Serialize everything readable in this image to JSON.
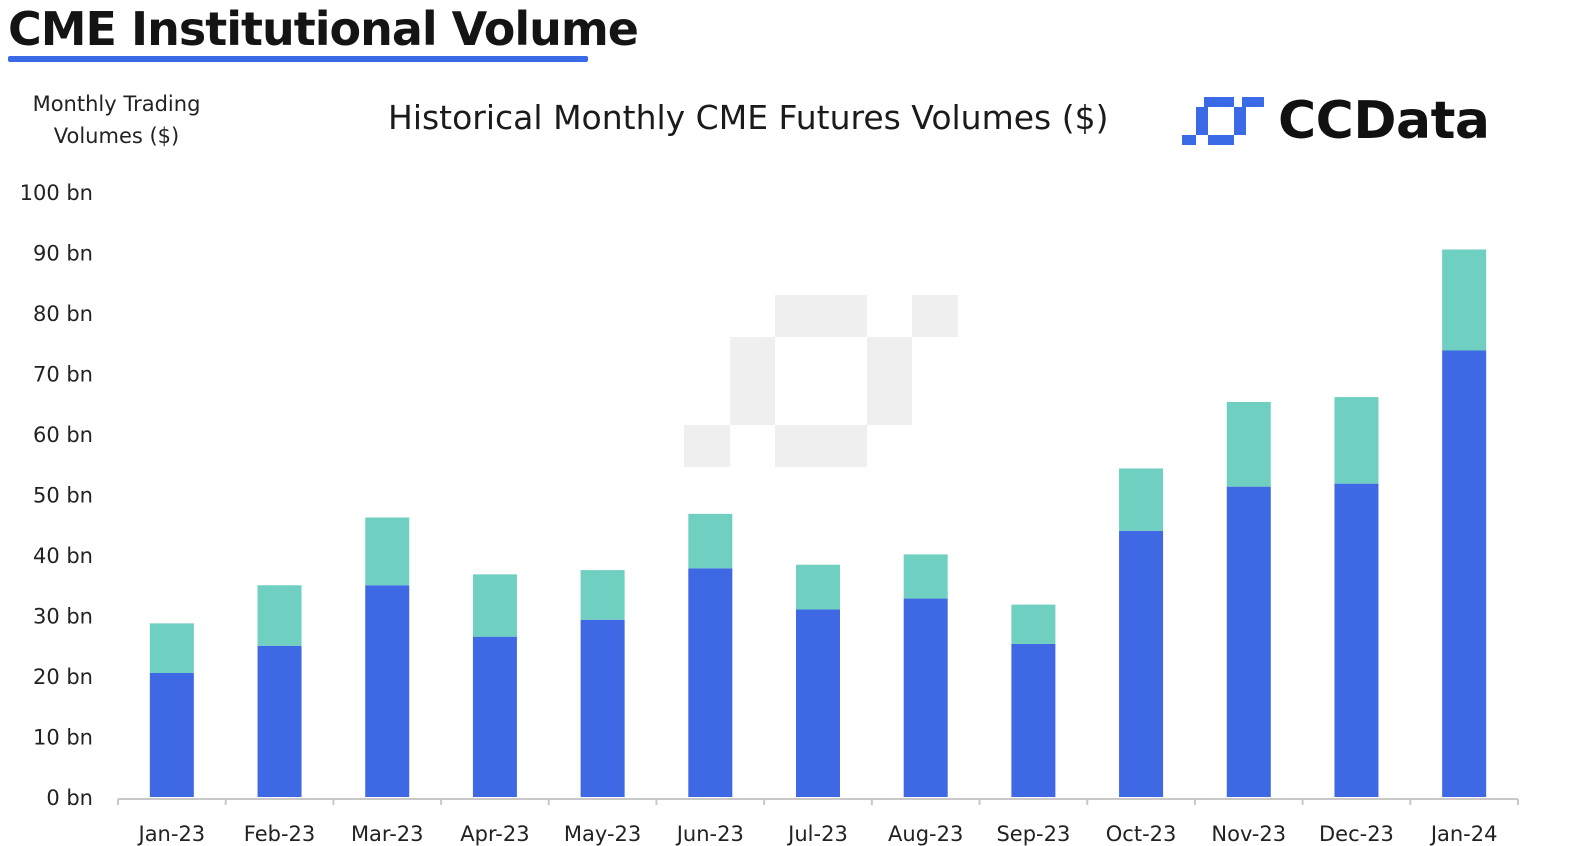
{
  "header": {
    "title": "CME Institutional Volume"
  },
  "logo": {
    "text": "CCData",
    "icon": "ccdata-logo-icon",
    "accent_color": "#3b6ae6"
  },
  "chart_data": {
    "type": "bar",
    "stacked": true,
    "title": "Historical Monthly CME Futures Volumes ($)",
    "ylabel": "Monthly Trading\nVolumes ($)",
    "xlabel": "",
    "categories": [
      "Jan-23",
      "Feb-23",
      "Mar-23",
      "Apr-23",
      "May-23",
      "Jun-23",
      "Jul-23",
      "Aug-23",
      "Sep-23",
      "Oct-23",
      "Nov-23",
      "Dec-23",
      "Jan-24"
    ],
    "series": [
      {
        "color": "#3e68e4",
        "values": [
          20.5,
          25,
          35,
          26.5,
          29.3,
          37.8,
          31,
          32.8,
          25.3,
          44,
          51.3,
          51.8,
          73.8
        ]
      },
      {
        "color": "#6fcfc0",
        "values": [
          8.2,
          10,
          11.2,
          10.3,
          8.2,
          9,
          7.4,
          7.3,
          6.5,
          10.3,
          14,
          14.3,
          16.7
        ]
      }
    ],
    "ylim": [
      0,
      100
    ],
    "yticks": [
      "0 bn",
      "10 bn",
      "20 bn",
      "30 bn",
      "40 bn",
      "50 bn",
      "60 bn",
      "70 bn",
      "80 bn",
      "90 bn",
      "100 bn"
    ],
    "grid": false,
    "watermark": "ccdata-logo-watermark"
  }
}
